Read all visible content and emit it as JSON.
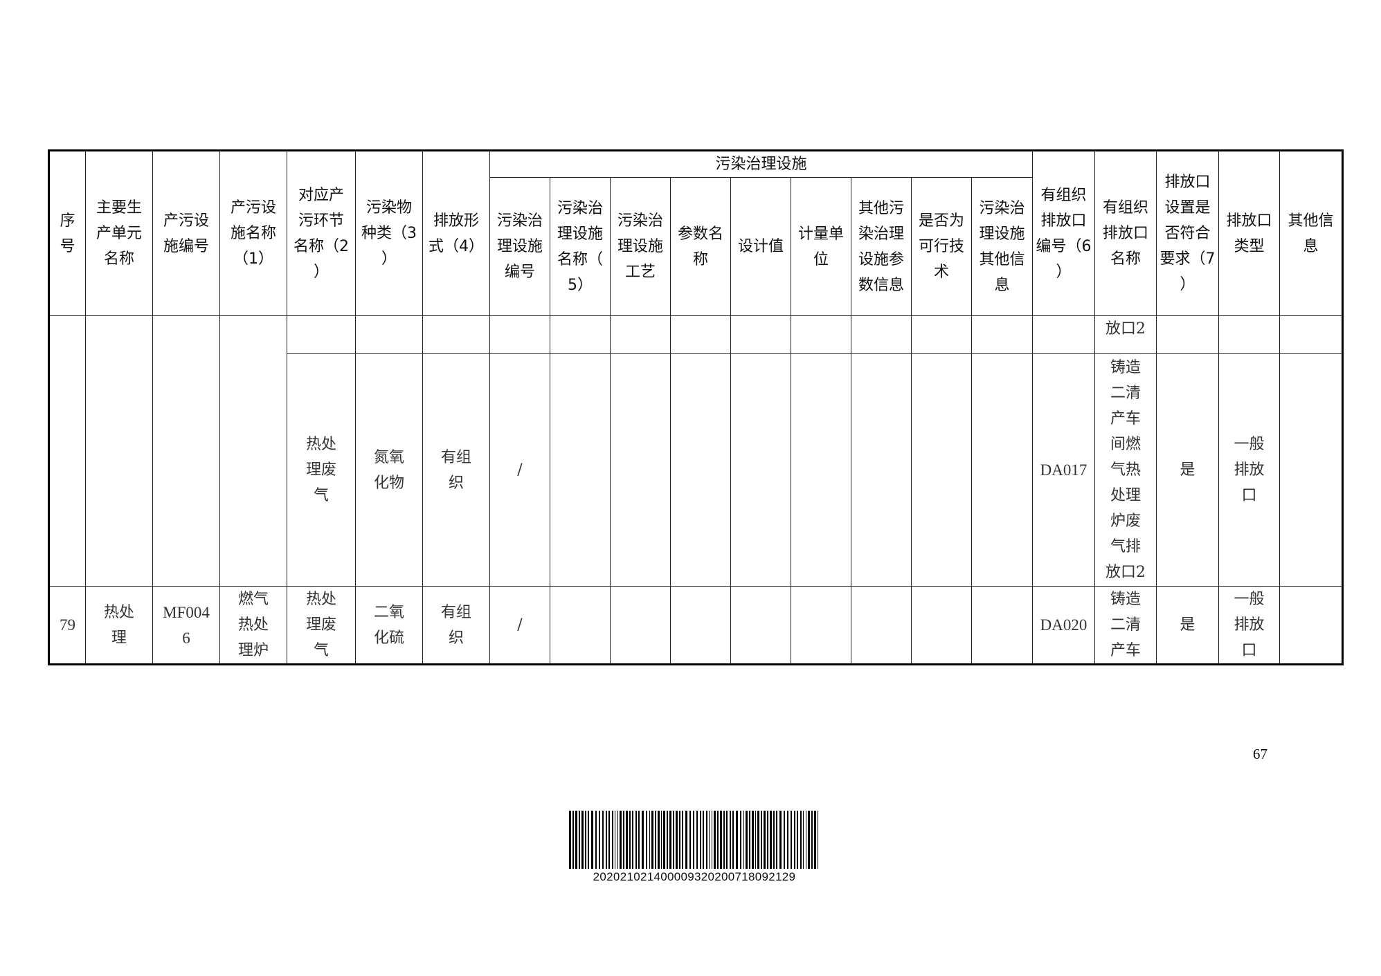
{
  "table": {
    "group_header": "污染治理设施",
    "headers": [
      "序\n号",
      "主要生\n产单元\n名称",
      "产污设\n施编号",
      "产污设\n施名称\n（1）",
      "对应产\n污环节\n名称（2\n）",
      "污染物\n种类（3\n）",
      "排放形\n式（4）",
      "污染治\n理设施\n编号",
      "污染治\n理设施\n名称（\n5）",
      "污染治\n理设施\n工艺",
      "参数名\n称",
      "设计值",
      "计量单\n位",
      "其他污\n染治理\n设施参\n数信息",
      "是否为\n可行技\n术",
      "污染治\n理设施\n其他信\n息",
      "有组织\n排放口\n编号（6\n）",
      "有组织\n排放口\n名称",
      "排放口\n设置是\n否符合\n要求（7\n）",
      "排放口\n类型",
      "其他信\n息"
    ],
    "rows": [
      {
        "outlet_name": "放口2"
      },
      {
        "pollution_stage": "热处\n理废\n气",
        "pollutant": "氮氧\n化物",
        "discharge_form": "有组\n织",
        "facility_id": "/",
        "outlet_id": "DA017",
        "outlet_name": "铸造\n二清\n产车\n间燃\n气热\n处理\n炉废\n气排\n放口2",
        "compliant": "是",
        "outlet_type": "一般\n排放\n口"
      },
      {
        "seq": "79",
        "unit": "热处\n理",
        "facility_code": "MF004\n6",
        "facility_name": "燃气\n热处\n理炉",
        "pollution_stage": "热处\n理废\n气",
        "pollutant": "二氧\n化硫",
        "discharge_form": "有组\n织",
        "facility_id": "/",
        "outlet_id": "DA020",
        "outlet_name": "铸造\n二清\n产车",
        "compliant": "是",
        "outlet_type": "一般\n排放\n口"
      }
    ]
  },
  "page_number": "67",
  "barcode_value": "202021021400009320200718092129"
}
